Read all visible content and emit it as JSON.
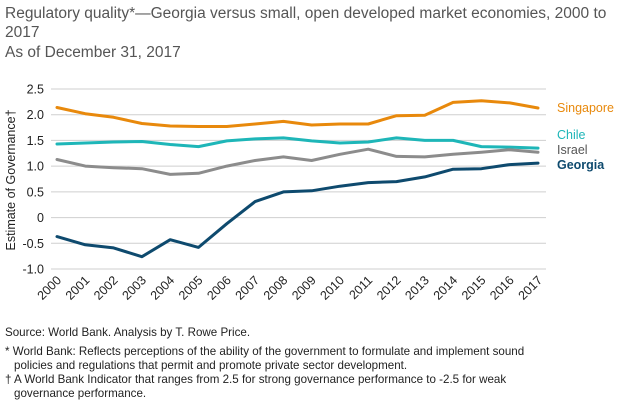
{
  "chart_data": {
    "type": "line",
    "title": "Regulatory quality*—Georgia versus small, open developed market economies, 2000 to 2017",
    "subtitle": "As of December 31, 2017",
    "xlabel": "",
    "ylabel": "Estimate of Governance†",
    "ylim": [
      -1.0,
      2.5
    ],
    "yticks": [
      "2.5",
      "2.0",
      "1.5",
      "1.0",
      "0.5",
      "0",
      "-0.5",
      "-1.0"
    ],
    "ytick_values": [
      2.5,
      2.0,
      1.5,
      1.0,
      0.5,
      0,
      -0.5,
      -1.0
    ],
    "x": [
      "2000",
      "2001",
      "2002",
      "2003",
      "2004",
      "2005",
      "2006",
      "2007",
      "2008",
      "2009",
      "2010",
      "2011",
      "2012",
      "2013",
      "2014",
      "2015",
      "2016",
      "2017"
    ],
    "grid": true,
    "series": [
      {
        "name": "Singapore",
        "color": "#E8890C",
        "width": 3,
        "values": [
          2.14,
          2.02,
          1.95,
          1.83,
          1.78,
          1.77,
          1.77,
          1.82,
          1.87,
          1.8,
          1.82,
          1.82,
          1.98,
          1.99,
          2.24,
          2.27,
          2.23,
          2.13
        ]
      },
      {
        "name": "Chile",
        "color": "#1EB6B8",
        "width": 3,
        "values": [
          1.43,
          1.45,
          1.47,
          1.48,
          1.42,
          1.38,
          1.49,
          1.53,
          1.55,
          1.49,
          1.45,
          1.47,
          1.55,
          1.5,
          1.5,
          1.38,
          1.37,
          1.35
        ]
      },
      {
        "name": "Israel",
        "color": "#8C8C8C",
        "width": 3,
        "values": [
          1.13,
          1.0,
          0.97,
          0.95,
          0.84,
          0.86,
          1.0,
          1.11,
          1.18,
          1.11,
          1.23,
          1.33,
          1.19,
          1.18,
          1.23,
          1.27,
          1.32,
          1.27
        ]
      },
      {
        "name": "Georgia",
        "color": "#0E4A6E",
        "width": 3,
        "values": [
          -0.37,
          -0.53,
          -0.59,
          -0.76,
          -0.43,
          -0.58,
          -0.12,
          0.31,
          0.5,
          0.52,
          0.61,
          0.68,
          0.7,
          0.79,
          0.94,
          0.95,
          1.03,
          1.06
        ]
      }
    ],
    "legend_placement": "right-inline"
  },
  "notes": {
    "source": "Source: World Bank. Analysis by T. Rowe Price.",
    "footnote1_line1": "* World Bank: Reflects perceptions of the ability of the government to formulate and implement sound",
    "footnote1_line2": "policies and regulations that permit and promote private sector development.",
    "footnote2_line1": "† A World Bank Indicator that ranges from 2.5 for strong governance performance to -2.5 for weak",
    "footnote2_line2": "governance performance."
  }
}
